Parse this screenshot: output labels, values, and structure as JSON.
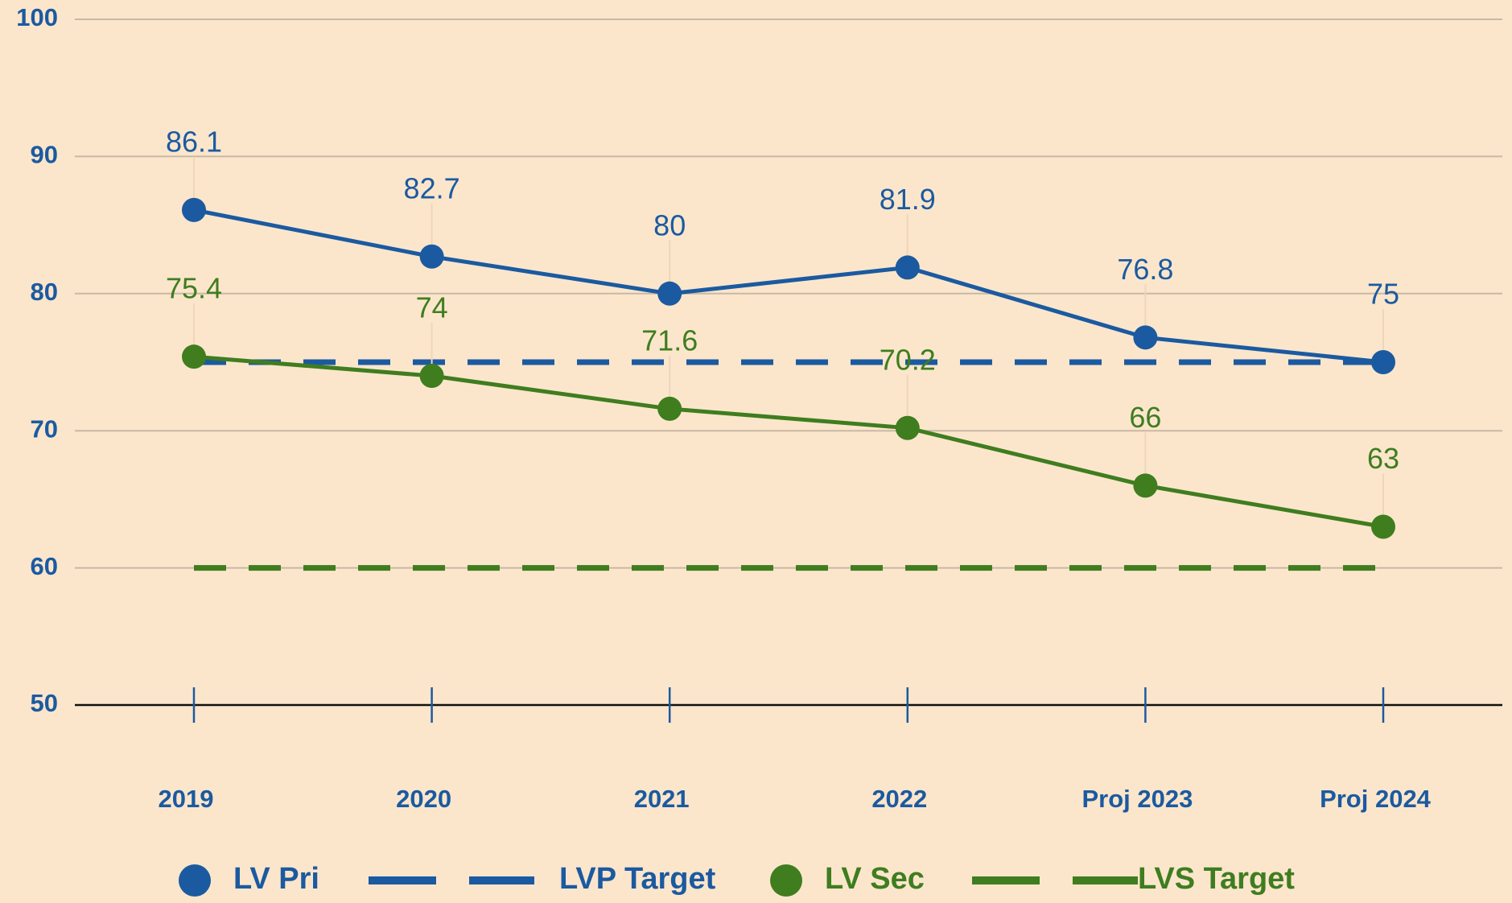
{
  "chart_data": {
    "type": "line",
    "categories": [
      "2019",
      "2020",
      "2021",
      "2022",
      "Proj 2023",
      "Proj 2024"
    ],
    "series": [
      {
        "name": "LV Pri",
        "color": "#1b5aa0",
        "line_style": "solid",
        "markers": true,
        "values": [
          86.1,
          82.7,
          80,
          81.9,
          76.8,
          75
        ]
      },
      {
        "name": "LVP Target",
        "color": "#1b5aa0",
        "line_style": "dashed",
        "markers": false,
        "values": [
          75,
          75,
          75,
          75,
          75,
          75
        ]
      },
      {
        "name": "LV Sec",
        "color": "#3f7d1f",
        "line_style": "solid",
        "markers": true,
        "values": [
          75.4,
          74,
          71.6,
          70.2,
          66,
          63
        ]
      },
      {
        "name": "LVS Target",
        "color": "#3f7d1f",
        "line_style": "dashed",
        "markers": false,
        "values": [
          60,
          60,
          60,
          60,
          60,
          60
        ]
      }
    ],
    "ylim": [
      50,
      100
    ],
    "yticks": [
      50,
      60,
      70,
      80,
      90,
      100
    ],
    "grid": true,
    "legend": "bottom"
  }
}
